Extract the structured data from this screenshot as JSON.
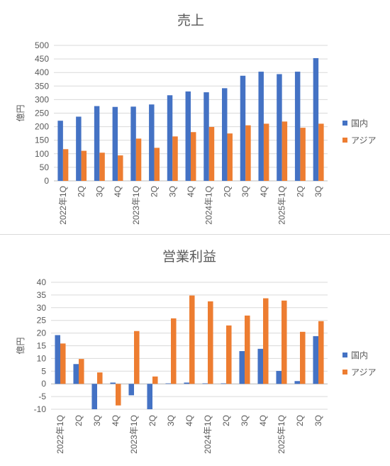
{
  "chart_data": [
    {
      "type": "bar",
      "title": "売上",
      "xlabel": "",
      "ylabel": "億円",
      "ylim": [
        0,
        500
      ],
      "yticks": [
        0,
        50,
        100,
        150,
        200,
        250,
        300,
        350,
        400,
        450,
        500
      ],
      "grid": true,
      "legend_position": "right",
      "categories": [
        "2022年1Q",
        "2Q",
        "3Q",
        "4Q",
        "2023年1Q",
        "2Q",
        "3Q",
        "4Q",
        "2024年1Q",
        "2Q",
        "3Q",
        "4Q",
        "2025年1Q",
        "2Q",
        "3Q"
      ],
      "series": [
        {
          "name": "国内",
          "color": "#4472c4",
          "values": [
            222,
            237,
            276,
            273,
            274,
            282,
            316,
            330,
            327,
            342,
            388,
            403,
            394,
            403,
            453
          ]
        },
        {
          "name": "アジア",
          "color": "#ed7d31",
          "values": [
            117,
            111,
            104,
            94,
            156,
            122,
            164,
            180,
            199,
            175,
            205,
            211,
            219,
            196,
            211
          ]
        }
      ]
    },
    {
      "type": "bar",
      "title": "営業利益",
      "xlabel": "",
      "ylabel": "億円",
      "ylim": [
        -10,
        40
      ],
      "yticks": [
        -10,
        -5,
        0,
        5,
        10,
        15,
        20,
        25,
        30,
        35,
        40
      ],
      "grid": true,
      "legend_position": "right",
      "categories": [
        "2022年1Q",
        "2Q",
        "3Q",
        "4Q",
        "2023年1Q",
        "2Q",
        "3Q",
        "4Q",
        "2024年1Q",
        "2Q",
        "3Q",
        "4Q",
        "2025年1Q",
        "2Q",
        "3Q"
      ],
      "series": [
        {
          "name": "国内",
          "color": "#4472c4",
          "values": [
            19.2,
            7.8,
            -10.0,
            0.5,
            -4.5,
            -10.0,
            0.2,
            0.5,
            0.2,
            0.2,
            12.9,
            13.8,
            5.1,
            1.1,
            18.8
          ]
        },
        {
          "name": "アジア",
          "color": "#ed7d31",
          "values": [
            15.9,
            9.8,
            4.5,
            -8.5,
            20.8,
            2.9,
            25.8,
            34.8,
            32.5,
            23.0,
            26.9,
            33.7,
            32.8,
            20.5,
            24.7
          ]
        }
      ]
    }
  ]
}
